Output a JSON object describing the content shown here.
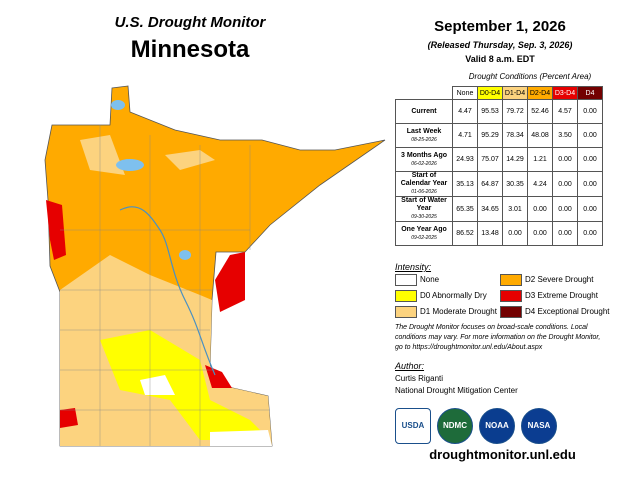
{
  "header": {
    "title": "U.S. Drought Monitor",
    "state": "Minnesota",
    "date": "September 1, 2026",
    "released": "(Released Thursday, Sep. 3, 2026)",
    "valid": "Valid 8 a.m. EDT"
  },
  "table": {
    "caption": "Drought Conditions (Percent Area)",
    "columns": [
      "None",
      "D0-D4",
      "D1-D4",
      "D2-D4",
      "D3-D4",
      "D4"
    ],
    "rows": [
      {
        "label": "Current",
        "values": [
          "4.47",
          "95.53",
          "79.72",
          "52.46",
          "4.57",
          "0.00"
        ]
      },
      {
        "label": "Last Week",
        "date": "08-25-2026",
        "values": [
          "4.71",
          "95.29",
          "78.34",
          "48.08",
          "3.50",
          "0.00"
        ]
      },
      {
        "label": "3 Months Ago",
        "date": "06-02-2026",
        "values": [
          "24.93",
          "75.07",
          "14.29",
          "1.21",
          "0.00",
          "0.00"
        ]
      },
      {
        "label": "Start of Calendar Year",
        "date": "01-06-2026",
        "values": [
          "35.13",
          "64.87",
          "30.35",
          "4.24",
          "0.00",
          "0.00"
        ]
      },
      {
        "label": "Start of Water Year",
        "date": "09-30-2025",
        "values": [
          "65.35",
          "34.65",
          "3.01",
          "0.00",
          "0.00",
          "0.00"
        ]
      },
      {
        "label": "One Year Ago",
        "date": "09-02-2025",
        "values": [
          "86.52",
          "13.48",
          "0.00",
          "0.00",
          "0.00",
          "0.00"
        ]
      }
    ]
  },
  "legend": {
    "title": "Intensity:",
    "items": [
      "None",
      "D0 Abnormally Dry",
      "D1 Moderate Drought",
      "D2 Severe Drought",
      "D3 Extreme Drought",
      "D4 Exceptional Drought"
    ]
  },
  "note": "The Drought Monitor focuses on broad-scale conditions. Local conditions may vary. For more information on the Drought Monitor, go to https://droughtmonitor.unl.edu/About.aspx",
  "author": {
    "heading": "Author:",
    "name": "Curtis Riganti",
    "org": "National Drought Mitigation Center"
  },
  "logos": [
    "USDA",
    "NDMC",
    "NOAA",
    "NASA"
  ],
  "url": "droughtmonitor.unl.edu"
}
